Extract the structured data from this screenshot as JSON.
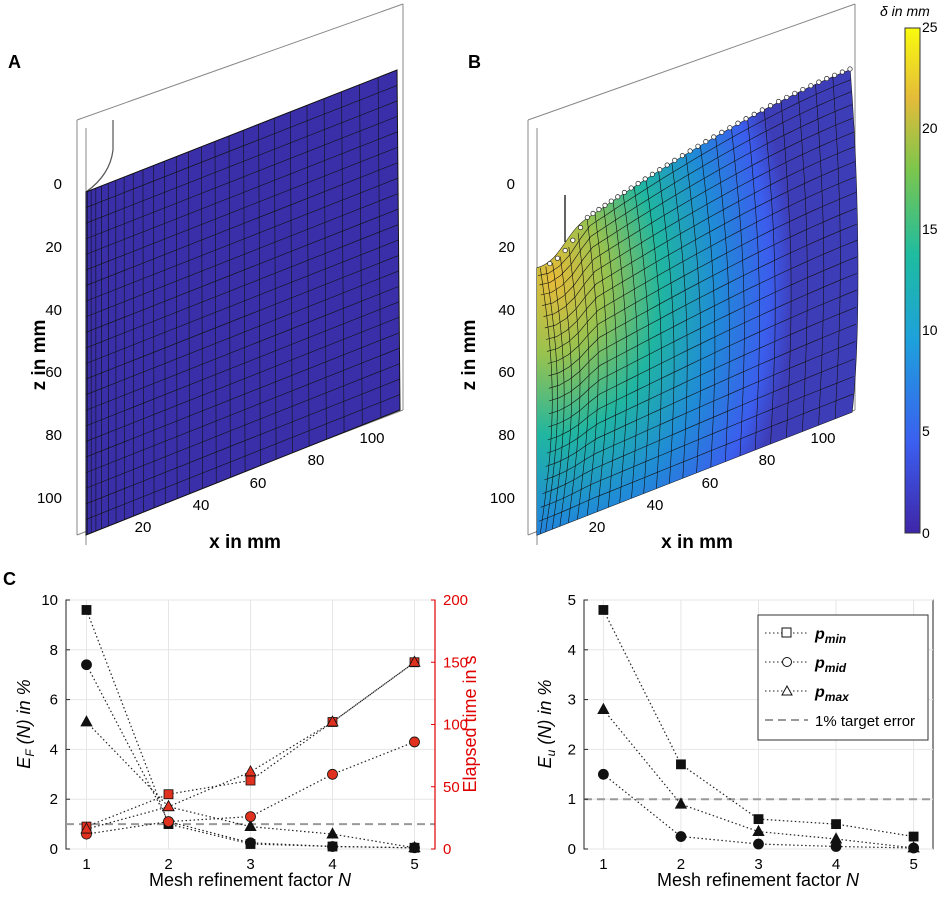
{
  "panels": {
    "a": {
      "letter": "A",
      "xlabel": "x in mm",
      "zlabel": "z in mm",
      "xticks": [
        "20",
        "40",
        "60",
        "80",
        "100"
      ],
      "zticks": [
        "0",
        "20",
        "40",
        "60",
        "80",
        "100"
      ]
    },
    "b": {
      "letter": "B",
      "xlabel": "x in mm",
      "zlabel": "z in mm",
      "xticks": [
        "20",
        "40",
        "60",
        "80",
        "100"
      ],
      "zticks": [
        "0",
        "20",
        "40",
        "60",
        "80",
        "100"
      ]
    },
    "c": {
      "letter": "C"
    }
  },
  "colorbar": {
    "label": "δ in mm",
    "ticks": [
      "0",
      "5",
      "10",
      "15",
      "20",
      "25"
    ],
    "stops": [
      "#3e26a8",
      "#3b5ff0",
      "#1ea0dc",
      "#1ebca0",
      "#7cc64c",
      "#e4bb3a",
      "#f9fb0e"
    ]
  },
  "colors": {
    "mesh": "#3a2fa8",
    "red": "#e00000",
    "red_marker": "#e0301e"
  },
  "chart_data": [
    {
      "type": "line",
      "title": "",
      "xlabel": "Mesh refinement factor N",
      "ylabel": "E_F (N) in %",
      "y2label": "Elapsed time in s",
      "x": [
        1,
        2,
        3,
        4,
        5
      ],
      "xticks": [
        "1",
        "2",
        "3",
        "4",
        "5"
      ],
      "ylim": [
        0,
        10
      ],
      "yticks": [
        "0",
        "2",
        "4",
        "6",
        "8",
        "10"
      ],
      "y2lim": [
        0,
        200
      ],
      "y2ticks": [
        "0",
        "50",
        "100",
        "150",
        "200"
      ],
      "target_error": 1,
      "series": [
        {
          "name": "p_min",
          "marker": "square",
          "axis": "left",
          "values": [
            9.6,
            1.0,
            0.2,
            0.1,
            0.05
          ]
        },
        {
          "name": "p_mid",
          "marker": "circle",
          "axis": "left",
          "values": [
            7.4,
            1.1,
            0.25,
            0.1,
            0.05
          ]
        },
        {
          "name": "p_max",
          "marker": "triangle",
          "axis": "left",
          "values": [
            5.1,
            1.7,
            0.9,
            0.6,
            0.05
          ]
        },
        {
          "name": "p_min time",
          "marker": "square",
          "axis": "right",
          "values": [
            18,
            44,
            55,
            102,
            150
          ]
        },
        {
          "name": "p_mid time",
          "marker": "circle",
          "axis": "right",
          "values": [
            12,
            22,
            26,
            60,
            86
          ]
        },
        {
          "name": "p_max time",
          "marker": "triangle",
          "axis": "right",
          "values": [
            16,
            34,
            62,
            102,
            150
          ]
        }
      ]
    },
    {
      "type": "line",
      "title": "",
      "xlabel": "Mesh refinement factor N",
      "ylabel": "E_u (N) in %",
      "x": [
        1,
        2,
        3,
        4,
        5
      ],
      "xticks": [
        "1",
        "2",
        "3",
        "4",
        "5"
      ],
      "ylim": [
        0,
        5
      ],
      "yticks": [
        "0",
        "1",
        "2",
        "3",
        "4",
        "5"
      ],
      "target_error": 1,
      "legend": {
        "placement": "top-right",
        "entries": [
          "p_min",
          "p_mid",
          "p_max",
          "1% target error"
        ]
      },
      "series": [
        {
          "name": "p_min",
          "marker": "square",
          "values": [
            4.8,
            1.7,
            0.6,
            0.5,
            0.25
          ]
        },
        {
          "name": "p_mid",
          "marker": "circle",
          "values": [
            1.5,
            0.25,
            0.1,
            0.05,
            0.02
          ]
        },
        {
          "name": "p_max",
          "marker": "triangle",
          "values": [
            2.8,
            0.9,
            0.35,
            0.2,
            0.02
          ]
        }
      ]
    }
  ]
}
